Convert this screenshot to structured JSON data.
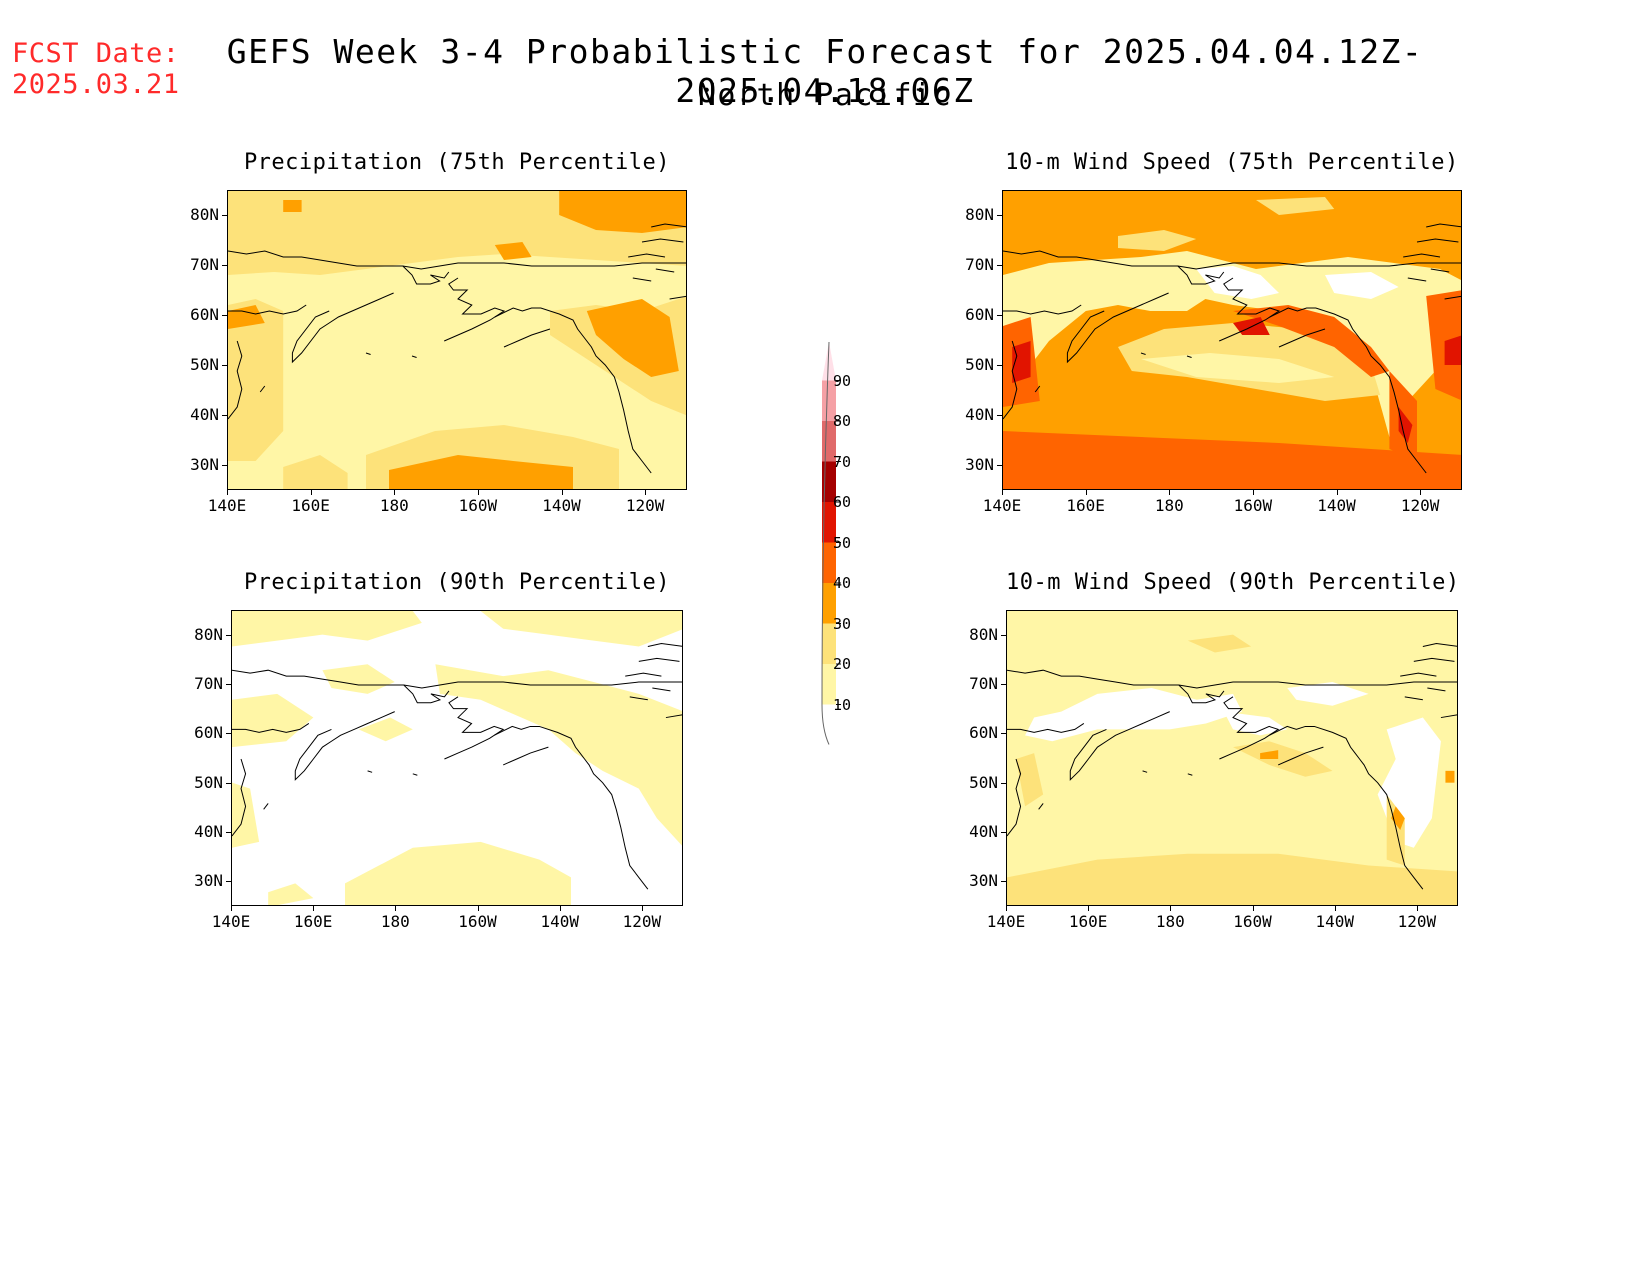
{
  "header": {
    "fcst_label": "FCST Date:",
    "fcst_date": "2025.03.21",
    "title": "GEFS Week 3-4 Probabilistic Forecast for 2025.04.04.12Z-2025.04.18.06Z",
    "subtitle": "North Pacific"
  },
  "axes": {
    "lat_labels": [
      "80N",
      "70N",
      "60N",
      "50N",
      "40N",
      "30N"
    ],
    "lon_labels": [
      "140E",
      "160E",
      "180",
      "160W",
      "140W",
      "120W"
    ]
  },
  "panels": [
    {
      "title": "Precipitation (75th Percentile)",
      "variable": "precipitation",
      "percentile": "75th"
    },
    {
      "title": "10-m Wind Speed (75th Percentile)",
      "variable": "wind",
      "percentile": "75th"
    },
    {
      "title": "Precipitation (90th Percentile)",
      "variable": "precipitation",
      "percentile": "90th"
    },
    {
      "title": "10-m Wind Speed (90th Percentile)",
      "variable": "wind",
      "percentile": "90th"
    }
  ],
  "colorbar": {
    "labels": [
      "90",
      "80",
      "70",
      "60",
      "50",
      "40",
      "30",
      "20",
      "10"
    ],
    "colors": [
      "#ffffff",
      "#fff6a6",
      "#fde27a",
      "#ffa000",
      "#ff6400",
      "#e11400",
      "#a50000",
      "#e06a6a",
      "#f5a0a5",
      "#ffe0e8"
    ]
  }
}
